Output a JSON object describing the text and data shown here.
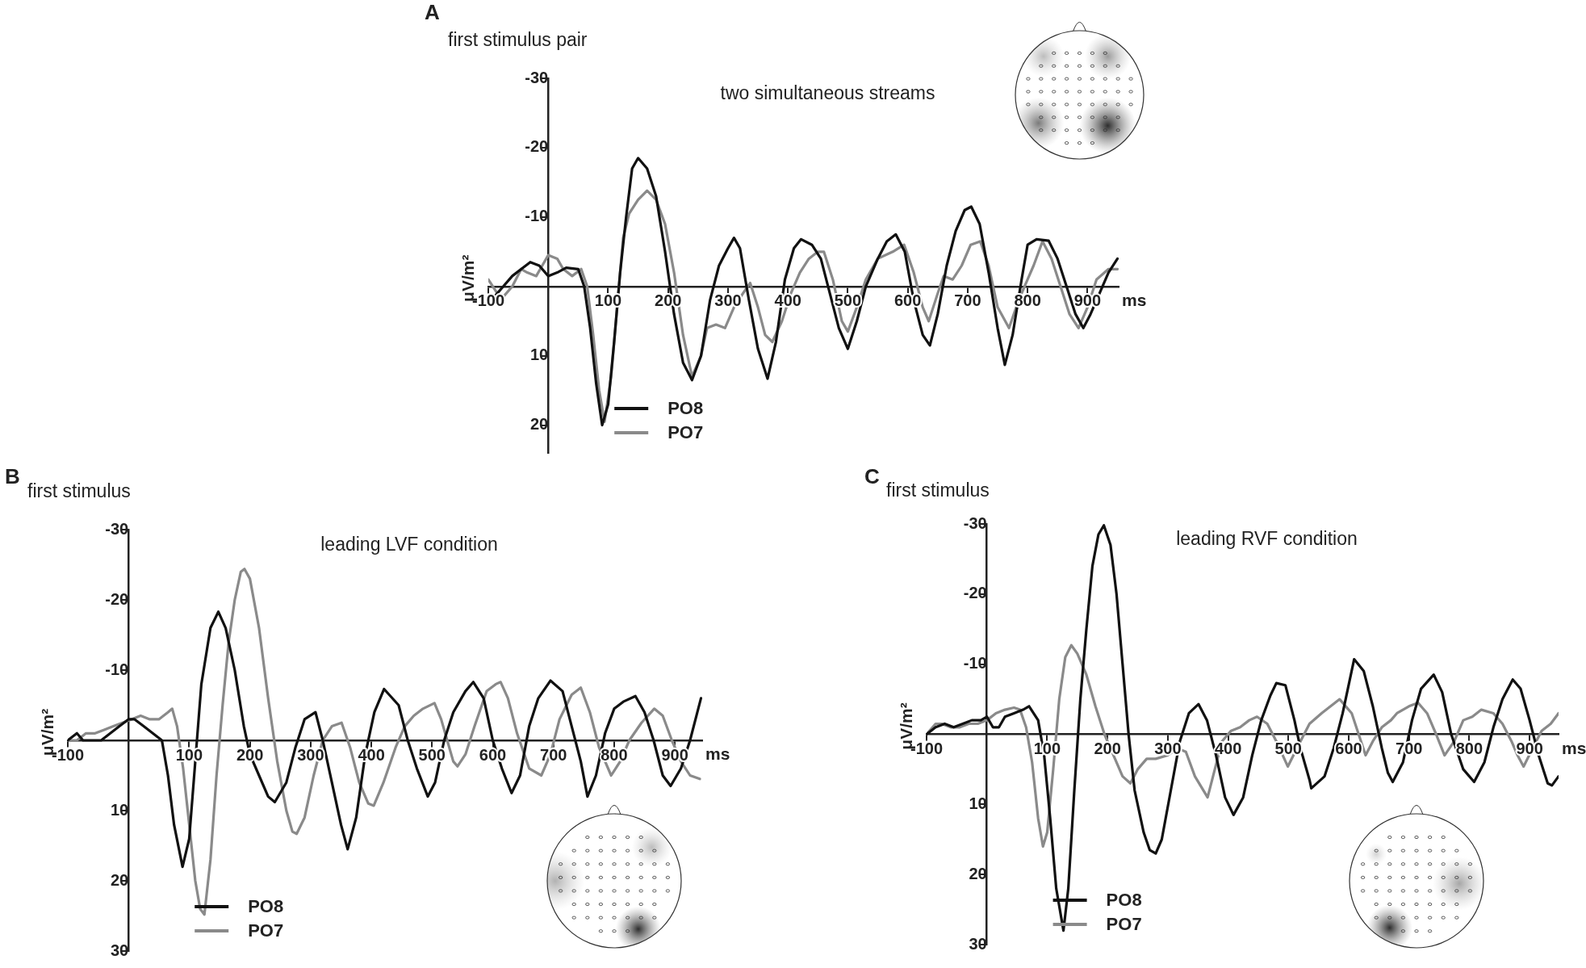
{
  "chart_data": [
    {
      "type": "line",
      "title": "first stimulus pair",
      "subtitle": "two simultaneous streams",
      "xlabel": "ms",
      "ylabel": "μV/m²",
      "annotations": [
        "A"
      ],
      "legend": "bottom left",
      "xlim": [
        -100,
        952
      ],
      "xticks": [
        -100,
        100,
        200,
        300,
        400,
        500,
        600,
        700,
        800,
        900
      ],
      "ylim": [
        24,
        -30
      ],
      "yticks": [
        -30,
        -20,
        -10,
        10,
        20
      ],
      "series": [
        {
          "name": "PO8",
          "color": "#111111",
          "x": [
            -100,
            -90,
            -75,
            -60,
            -45,
            -30,
            -15,
            0,
            15,
            30,
            50,
            60,
            70,
            80,
            90,
            100,
            110,
            120,
            130,
            140,
            150,
            165,
            180,
            195,
            210,
            225,
            240,
            255,
            270,
            285,
            300,
            310,
            320,
            335,
            350,
            366,
            380,
            395,
            410,
            422,
            440,
            455,
            470,
            485,
            500,
            515,
            530,
            550,
            565,
            580,
            595,
            610,
            625,
            637,
            650,
            665,
            680,
            695,
            706,
            720,
            735,
            750,
            762,
            775,
            790,
            800,
            815,
            835,
            850,
            865,
            880,
            893,
            905,
            920,
            935,
            950
          ],
          "values": [
            2,
            1.5,
            0,
            -1.5,
            -2.5,
            -3.5,
            -3,
            -1.5,
            -2,
            -2.7,
            -2.5,
            0,
            6,
            14,
            20,
            17,
            8,
            -2,
            -10,
            -17,
            -18.5,
            -17,
            -13,
            -5,
            4,
            11,
            13.5,
            10,
            2,
            -3,
            -5.5,
            -7,
            -5.5,
            2,
            9,
            13.3,
            8,
            -1,
            -5.5,
            -6.8,
            -6,
            -4,
            1,
            6,
            9,
            5,
            0,
            -4,
            -6.5,
            -7.5,
            -5,
            2,
            7,
            8.5,
            4,
            -3,
            -8,
            -11,
            -11.5,
            -9,
            -2,
            6,
            11.3,
            7,
            -1,
            -6,
            -6.8,
            -6.6,
            -4,
            0,
            4,
            6,
            4,
            1,
            -2,
            -4
          ]
        },
        {
          "name": "PO7",
          "color": "#8a8a8a",
          "x": [
            -100,
            -85,
            -75,
            -60,
            -45,
            -35,
            -20,
            -10,
            0,
            15,
            25,
            40,
            55,
            65,
            75,
            85,
            94,
            105,
            115,
            125,
            135,
            150,
            165,
            180,
            195,
            210,
            225,
            240,
            255,
            265,
            280,
            295,
            310,
            325,
            337,
            350,
            362,
            374,
            390,
            405,
            420,
            435,
            450,
            460,
            475,
            490,
            500,
            515,
            530,
            550,
            575,
            594,
            610,
            625,
            635,
            650,
            660,
            675,
            690,
            705,
            721,
            735,
            750,
            769,
            785,
            800,
            810,
            825,
            840,
            855,
            870,
            885,
            900,
            915,
            935,
            950
          ],
          "values": [
            -1,
            1,
            1.5,
            0,
            -2.5,
            -2,
            -1.5,
            -3,
            -4.5,
            -4,
            -2.5,
            -1.5,
            -2.5,
            0,
            7,
            15,
            19.5,
            13,
            3,
            -7,
            -10.5,
            -12.5,
            -13.8,
            -12.5,
            -9,
            -2,
            7,
            13,
            10,
            6,
            5.5,
            6,
            3,
            1,
            -0.5,
            3,
            7,
            8,
            5,
            1,
            -2,
            -4,
            -5,
            -5,
            -1,
            5,
            6.5,
            3,
            -1,
            -4,
            -5,
            -6,
            -2,
            3,
            5,
            1,
            -1.5,
            -1,
            -3,
            -6,
            -6.5,
            -3,
            3,
            6,
            2,
            -1,
            -3,
            -6.5,
            -4,
            0,
            4,
            6,
            3,
            -1,
            -2.5,
            -2.5
          ]
        }
      ]
    },
    {
      "type": "line",
      "title": "first stimulus",
      "subtitle": "leading LVF condition",
      "xlabel": "ms",
      "ylabel": "μV/m²",
      "annotations": [
        "B"
      ],
      "legend": "bottom left",
      "xlim": [
        -100,
        945
      ],
      "xticks": [
        -100,
        100,
        200,
        300,
        400,
        500,
        600,
        700,
        800,
        900
      ],
      "ylim": [
        30,
        -30
      ],
      "yticks": [
        -30,
        -20,
        -10,
        10,
        20,
        30
      ],
      "series": [
        {
          "name": "PO8",
          "color": "#111111",
          "x": [
            -100,
            -85,
            -75,
            -60,
            -45,
            -30,
            -15,
            0,
            10,
            25,
            40,
            55,
            65,
            75,
            89,
            100,
            110,
            120,
            135,
            148,
            160,
            175,
            190,
            200,
            215,
            230,
            241,
            260,
            275,
            290,
            308,
            320,
            335,
            350,
            361,
            375,
            390,
            405,
            421,
            445,
            460,
            475,
            493,
            505,
            520,
            535,
            555,
            568,
            585,
            600,
            615,
            631,
            645,
            660,
            675,
            695,
            715,
            730,
            745,
            756,
            770,
            785,
            800,
            815,
            835,
            850,
            865,
            880,
            893,
            910,
            925,
            943
          ],
          "values": [
            0,
            -1,
            0,
            0,
            0,
            -1,
            -2,
            -3,
            -3,
            -2,
            -1,
            0,
            5,
            12,
            18,
            14,
            3,
            -8,
            -16,
            -18.3,
            -16,
            -10,
            -2,
            2,
            5,
            8,
            8.8,
            6,
            1,
            -3,
            -4,
            0,
            6,
            12,
            15.5,
            11,
            2,
            -4,
            -7.3,
            -5,
            0,
            4,
            8,
            6,
            0,
            -4,
            -7,
            -8.3,
            -6,
            0,
            4,
            7.5,
            5,
            -2,
            -6,
            -8.5,
            -7,
            -2,
            3,
            8,
            5,
            -1,
            -4.5,
            -5.5,
            -6.3,
            -4,
            0,
            5,
            6.5,
            4,
            0,
            -6
          ]
        },
        {
          "name": "PO7",
          "color": "#8a8a8a",
          "x": [
            -100,
            -85,
            -70,
            -55,
            -40,
            -25,
            -10,
            5,
            20,
            35,
            50,
            65,
            72,
            80,
            90,
            100,
            110,
            118,
            125,
            135,
            145,
            155,
            165,
            175,
            185,
            191,
            200,
            215,
            230,
            245,
            260,
            270,
            277,
            290,
            305,
            320,
            335,
            351,
            365,
            380,
            395,
            404,
            420,
            440,
            455,
            470,
            485,
            504,
            515,
            525,
            535,
            542,
            555,
            570,
            590,
            605,
            613,
            625,
            640,
            660,
            680,
            695,
            710,
            730,
            745,
            760,
            775,
            795,
            810,
            825,
            845,
            866,
            880,
            895,
            910,
            925,
            941
          ],
          "values": [
            0,
            0,
            -1,
            -1,
            -1.5,
            -2,
            -2.5,
            -3,
            -3.5,
            -3,
            -3,
            -4,
            -4.5,
            -2,
            4,
            12,
            20,
            24,
            24.8,
            17,
            5,
            -5,
            -14,
            -20,
            -24,
            -24.4,
            -23,
            -16,
            -6,
            3,
            10,
            13,
            13.3,
            11,
            5,
            0,
            -2,
            -2.5,
            1,
            6,
            9,
            9.3,
            6,
            1,
            -2,
            -3.5,
            -4.5,
            -5.3,
            -3,
            0,
            3,
            3.7,
            2,
            -2,
            -7,
            -8,
            -8.3,
            -6,
            -1,
            4,
            5,
            2,
            -3,
            -6.5,
            -7.5,
            -4,
            1,
            5,
            3,
            0,
            -2.5,
            -4.5,
            -3.5,
            0,
            3,
            5,
            5.5
          ]
        }
      ]
    },
    {
      "type": "line",
      "title": "first stimulus",
      "subtitle": "leading RVF condition",
      "xlabel": "ms",
      "ylabel": "μV/m²",
      "annotations": [
        "C"
      ],
      "legend": "bottom left",
      "xlim": [
        -100,
        948
      ],
      "xticks": [
        -100,
        100,
        200,
        300,
        400,
        500,
        600,
        700,
        800,
        900
      ],
      "ylim": [
        30,
        -30
      ],
      "yticks": [
        -30,
        -20,
        -10,
        10,
        20,
        30
      ],
      "series": [
        {
          "name": "PO8",
          "color": "#111111",
          "x": [
            -100,
            -85,
            -70,
            -55,
            -40,
            -25,
            -10,
            0,
            10,
            20,
            30,
            45,
            60,
            70,
            85,
            95,
            105,
            115,
            127,
            135,
            145,
            155,
            165,
            175,
            185,
            194,
            205,
            215,
            225,
            235,
            245,
            260,
            270,
            280,
            290,
            305,
            320,
            335,
            351,
            365,
            380,
            395,
            409,
            425,
            440,
            455,
            470,
            480,
            495,
            510,
            520,
            535,
            538,
            560,
            575,
            590,
            609,
            625,
            640,
            655,
            665,
            673,
            690,
            705,
            720,
            741,
            755,
            770,
            790,
            808,
            825,
            840,
            855,
            872,
            885,
            900,
            915,
            930,
            937,
            948
          ],
          "values": [
            0,
            -1,
            -1.5,
            -1,
            -1.5,
            -2,
            -2,
            -2.5,
            -1,
            -1,
            -2.5,
            -3,
            -3.5,
            -4,
            -2,
            3,
            12,
            22,
            28,
            22,
            8,
            -5,
            -15,
            -24,
            -28.5,
            -29.8,
            -27,
            -20,
            -10,
            0,
            8,
            14,
            16.5,
            17,
            15,
            8,
            1,
            -3,
            -4.3,
            -2,
            3,
            9,
            11.5,
            9,
            3,
            -2,
            -5.5,
            -7.3,
            -7,
            -2,
            2,
            6.5,
            7.7,
            6,
            2,
            -3,
            -10.7,
            -9,
            -4,
            2,
            5.5,
            6.8,
            4,
            -2,
            -6.5,
            -8.5,
            -6,
            0,
            5,
            6.8,
            4,
            -1,
            -5,
            -7.8,
            -6.5,
            -2,
            3,
            7,
            7.3,
            6
          ]
        },
        {
          "name": "PO7",
          "color": "#8a8a8a",
          "x": [
            -100,
            -85,
            -75,
            -60,
            -45,
            -30,
            -15,
            0,
            15,
            30,
            45,
            55,
            65,
            75,
            85,
            93,
            100,
            110,
            120,
            130,
            140,
            150,
            165,
            180,
            195,
            210,
            225,
            238,
            250,
            265,
            280,
            300,
            316,
            330,
            345,
            366,
            375,
            390,
            405,
            420,
            435,
            448,
            465,
            480,
            499,
            520,
            535,
            555,
            585,
            605,
            628,
            640,
            655,
            670,
            680,
            700,
            715,
            730,
            745,
            759,
            775,
            790,
            805,
            820,
            840,
            855,
            870,
            880,
            890,
            905,
            920,
            935,
            948
          ],
          "values": [
            0,
            -1.5,
            -1.5,
            -1,
            -1,
            -1.5,
            -1.5,
            -2,
            -3,
            -3.5,
            -3.8,
            -3.5,
            -1,
            4,
            12,
            16,
            14,
            5,
            -5,
            -11,
            -12.7,
            -11.5,
            -8.5,
            -4,
            0,
            3,
            6,
            7,
            5,
            3.5,
            3.5,
            3,
            2,
            2.5,
            6,
            9,
            6,
            1,
            -0.5,
            -1,
            -2,
            -2.5,
            -1.5,
            1,
            4.6,
            1,
            -1.5,
            -3,
            -5,
            -3,
            3,
            1,
            -1,
            -2,
            -3,
            -4,
            -4.5,
            -3,
            0,
            3,
            1,
            -2,
            -2.5,
            -3.5,
            -3,
            -1.5,
            1,
            3,
            4.6,
            2,
            -0.5,
            -1.5,
            -3
          ]
        }
      ]
    }
  ]
}
